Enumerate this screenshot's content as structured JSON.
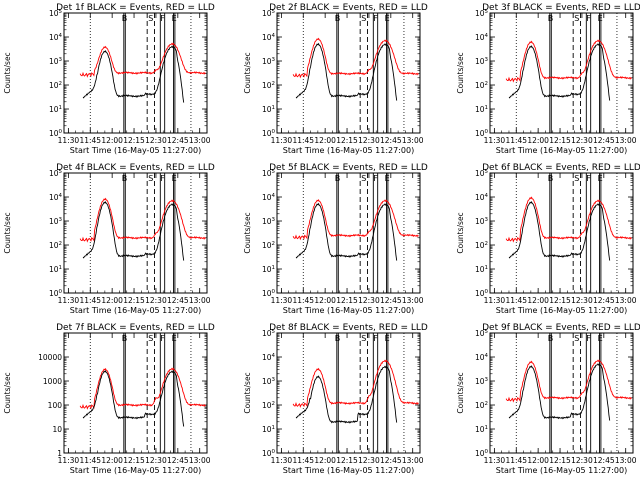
{
  "chart_data": {
    "type": "line",
    "layout": "3x3 grid",
    "shared": {
      "xlabel": "Start Time (16-May-05 11:27:00)",
      "ylabel": "Counts/sec",
      "x_tick_labels": [
        "11:30",
        "11:45",
        "12:00",
        "12:15",
        "12:30",
        "12:45",
        "13:00"
      ],
      "xlim": [
        "11:27",
        "13:05"
      ],
      "ylim": [
        1,
        100000
      ],
      "y_scale": "log",
      "y_tick_labels_power": [
        "10^0",
        "10^1",
        "10^2",
        "10^3",
        "10^4",
        "10^5"
      ],
      "y_tick_labels_plain": [
        "1",
        "10",
        "100",
        "1000",
        "10000"
      ],
      "interval_markers": [
        {
          "label": "B",
          "start": "12:08",
          "end": "12:09",
          "style": "solid"
        },
        {
          "label": "S",
          "start": "12:24",
          "end": "12:29",
          "style": "dashed"
        },
        {
          "label": "F",
          "start": "12:33",
          "end": "12:36",
          "style": "solid"
        },
        {
          "label": "E",
          "start": "12:42",
          "end": "12:43",
          "style": "solid"
        }
      ],
      "dotted_lines": [
        "11:45",
        "12:54"
      ],
      "colors": {
        "events": "#000000",
        "lld": "#ff0000",
        "markers": "#000000"
      }
    },
    "panels": [
      {
        "title": "Det 1f BLACK = Events, RED = LLD",
        "lld": {
          "base": 320,
          "peak1": 3500,
          "peak2": 5000,
          "small": 80
        },
        "events": {
          "peak1": 2500,
          "peak2": 4000,
          "post": 35,
          "late": 30
        }
      },
      {
        "title": "Det 2f BLACK = Events, RED = LLD",
        "lld": {
          "base": 300,
          "peak1": 8000,
          "peak2": 7000,
          "small": 100
        },
        "events": {
          "peak1": 5000,
          "peak2": 5000,
          "post": 35,
          "late": 30
        }
      },
      {
        "title": "Det 3f BLACK = Events, RED = LLD",
        "lld": {
          "base": 200,
          "peak1": 6000,
          "peak2": 7000,
          "small": 80
        },
        "events": {
          "peak1": 4000,
          "peak2": 5000,
          "post": 35,
          "late": 30
        }
      },
      {
        "title": "Det 4f BLACK = Events, RED = LLD",
        "lld": {
          "base": 200,
          "peak1": 8000,
          "peak2": 7000,
          "small": 80
        },
        "events": {
          "peak1": 6000,
          "peak2": 5000,
          "post": 35,
          "late": 30
        }
      },
      {
        "title": "Det 5f BLACK = Events, RED = LLD",
        "lld": {
          "base": 250,
          "peak1": 7000,
          "peak2": 7000,
          "small": 80
        },
        "events": {
          "peak1": 5000,
          "peak2": 5000,
          "post": 35,
          "late": 30
        }
      },
      {
        "title": "Det 6f BLACK = Events, RED = LLD",
        "lld": {
          "base": 200,
          "peak1": 9000,
          "peak2": 7000,
          "small": 80
        },
        "events": {
          "peak1": 6000,
          "peak2": 5000,
          "post": 35,
          "late": 30
        }
      },
      {
        "title": "Det 7f BLACK = Events, RED = LLD",
        "plain_ticks": true,
        "lld": {
          "base": 100,
          "peak1": 3000,
          "peak2": 3200,
          "small": 80
        },
        "events": {
          "peak1": 2500,
          "peak2": 2500,
          "post": 30,
          "late": 30
        }
      },
      {
        "title": "Det 8f BLACK = Events, RED = LLD",
        "lld": {
          "base": 120,
          "peak1": 3000,
          "peak2": 7000,
          "small": 80
        },
        "events": {
          "peak1": 1500,
          "peak2": 4000,
          "post": 20,
          "late": 30
        }
      },
      {
        "title": "Det 9f BLACK = Events, RED = LLD",
        "lld": {
          "base": 200,
          "peak1": 6000,
          "peak2": 7000,
          "small": 80
        },
        "events": {
          "peak1": 4000,
          "peak2": 5000,
          "post": 30,
          "late": 30
        }
      }
    ]
  }
}
